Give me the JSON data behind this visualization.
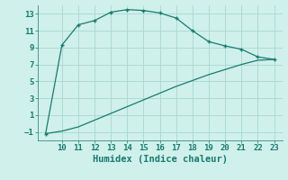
{
  "xlabel": "Humidex (Indice chaleur)",
  "bg_color": "#cff0eb",
  "line_color": "#1a7a6e",
  "grid_color": "#a8d8d0",
  "curve1_x": [
    9,
    10,
    11,
    12,
    13,
    14,
    15,
    16,
    17,
    18,
    19,
    20,
    21,
    22,
    23
  ],
  "curve1_y": [
    -1.2,
    9.3,
    11.7,
    12.2,
    13.2,
    13.5,
    13.4,
    13.1,
    12.5,
    11.0,
    9.7,
    9.2,
    8.8,
    7.9,
    7.6
  ],
  "curve2_x": [
    9,
    10,
    11,
    12,
    13,
    14,
    15,
    16,
    17,
    18,
    19,
    20,
    21,
    22,
    23
  ],
  "curve2_y": [
    -1.2,
    -0.9,
    -0.4,
    0.4,
    1.2,
    2.0,
    2.8,
    3.6,
    4.4,
    5.1,
    5.8,
    6.4,
    7.0,
    7.5,
    7.6
  ],
  "xlim": [
    8.5,
    23.5
  ],
  "ylim": [
    -2.0,
    14.0
  ],
  "yticks": [
    -1,
    1,
    3,
    5,
    7,
    9,
    11,
    13
  ],
  "xticks": [
    10,
    11,
    12,
    13,
    14,
    15,
    16,
    17,
    18,
    19,
    20,
    21,
    22,
    23
  ],
  "tick_color": "#1a7a6e",
  "label_fontsize": 7.5,
  "tick_fontsize": 6.5
}
